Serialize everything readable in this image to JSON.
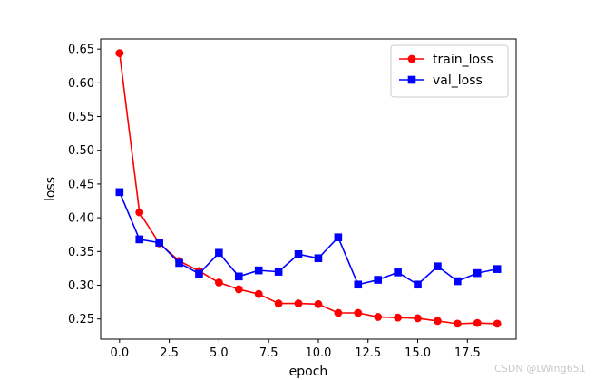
{
  "chart_data": {
    "type": "line",
    "xlabel": "epoch",
    "ylabel": "loss",
    "xlim": [
      -0.95,
      19.95
    ],
    "ylim": [
      0.22,
      0.665
    ],
    "xticks": [
      0.0,
      2.5,
      5.0,
      7.5,
      10.0,
      12.5,
      15.0,
      17.5
    ],
    "xtick_labels": [
      "0.0",
      "2.5",
      "5.0",
      "7.5",
      "10.0",
      "12.5",
      "15.0",
      "17.5"
    ],
    "yticks": [
      0.25,
      0.3,
      0.35,
      0.4,
      0.45,
      0.5,
      0.55,
      0.6,
      0.65
    ],
    "ytick_labels": [
      "0.25",
      "0.30",
      "0.35",
      "0.40",
      "0.45",
      "0.50",
      "0.55",
      "0.60",
      "0.65"
    ],
    "grid": false,
    "legend_position": "top-right",
    "x": [
      0,
      1,
      2,
      3,
      4,
      5,
      6,
      7,
      8,
      9,
      10,
      11,
      12,
      13,
      14,
      15,
      16,
      17,
      18,
      19
    ],
    "series": [
      {
        "name": "train_loss",
        "color": "#ff0000",
        "marker": "circle",
        "values": [
          0.644,
          0.408,
          0.362,
          0.336,
          0.321,
          0.304,
          0.294,
          0.287,
          0.273,
          0.273,
          0.272,
          0.259,
          0.259,
          0.253,
          0.252,
          0.251,
          0.247,
          0.243,
          0.244,
          0.243
        ]
      },
      {
        "name": "val_loss",
        "color": "#0000ff",
        "marker": "square",
        "values": [
          0.438,
          0.368,
          0.363,
          0.333,
          0.317,
          0.348,
          0.313,
          0.322,
          0.32,
          0.346,
          0.34,
          0.371,
          0.301,
          0.308,
          0.319,
          0.301,
          0.328,
          0.306,
          0.318,
          0.324
        ]
      }
    ]
  },
  "watermark": "CSDN @LWing651"
}
